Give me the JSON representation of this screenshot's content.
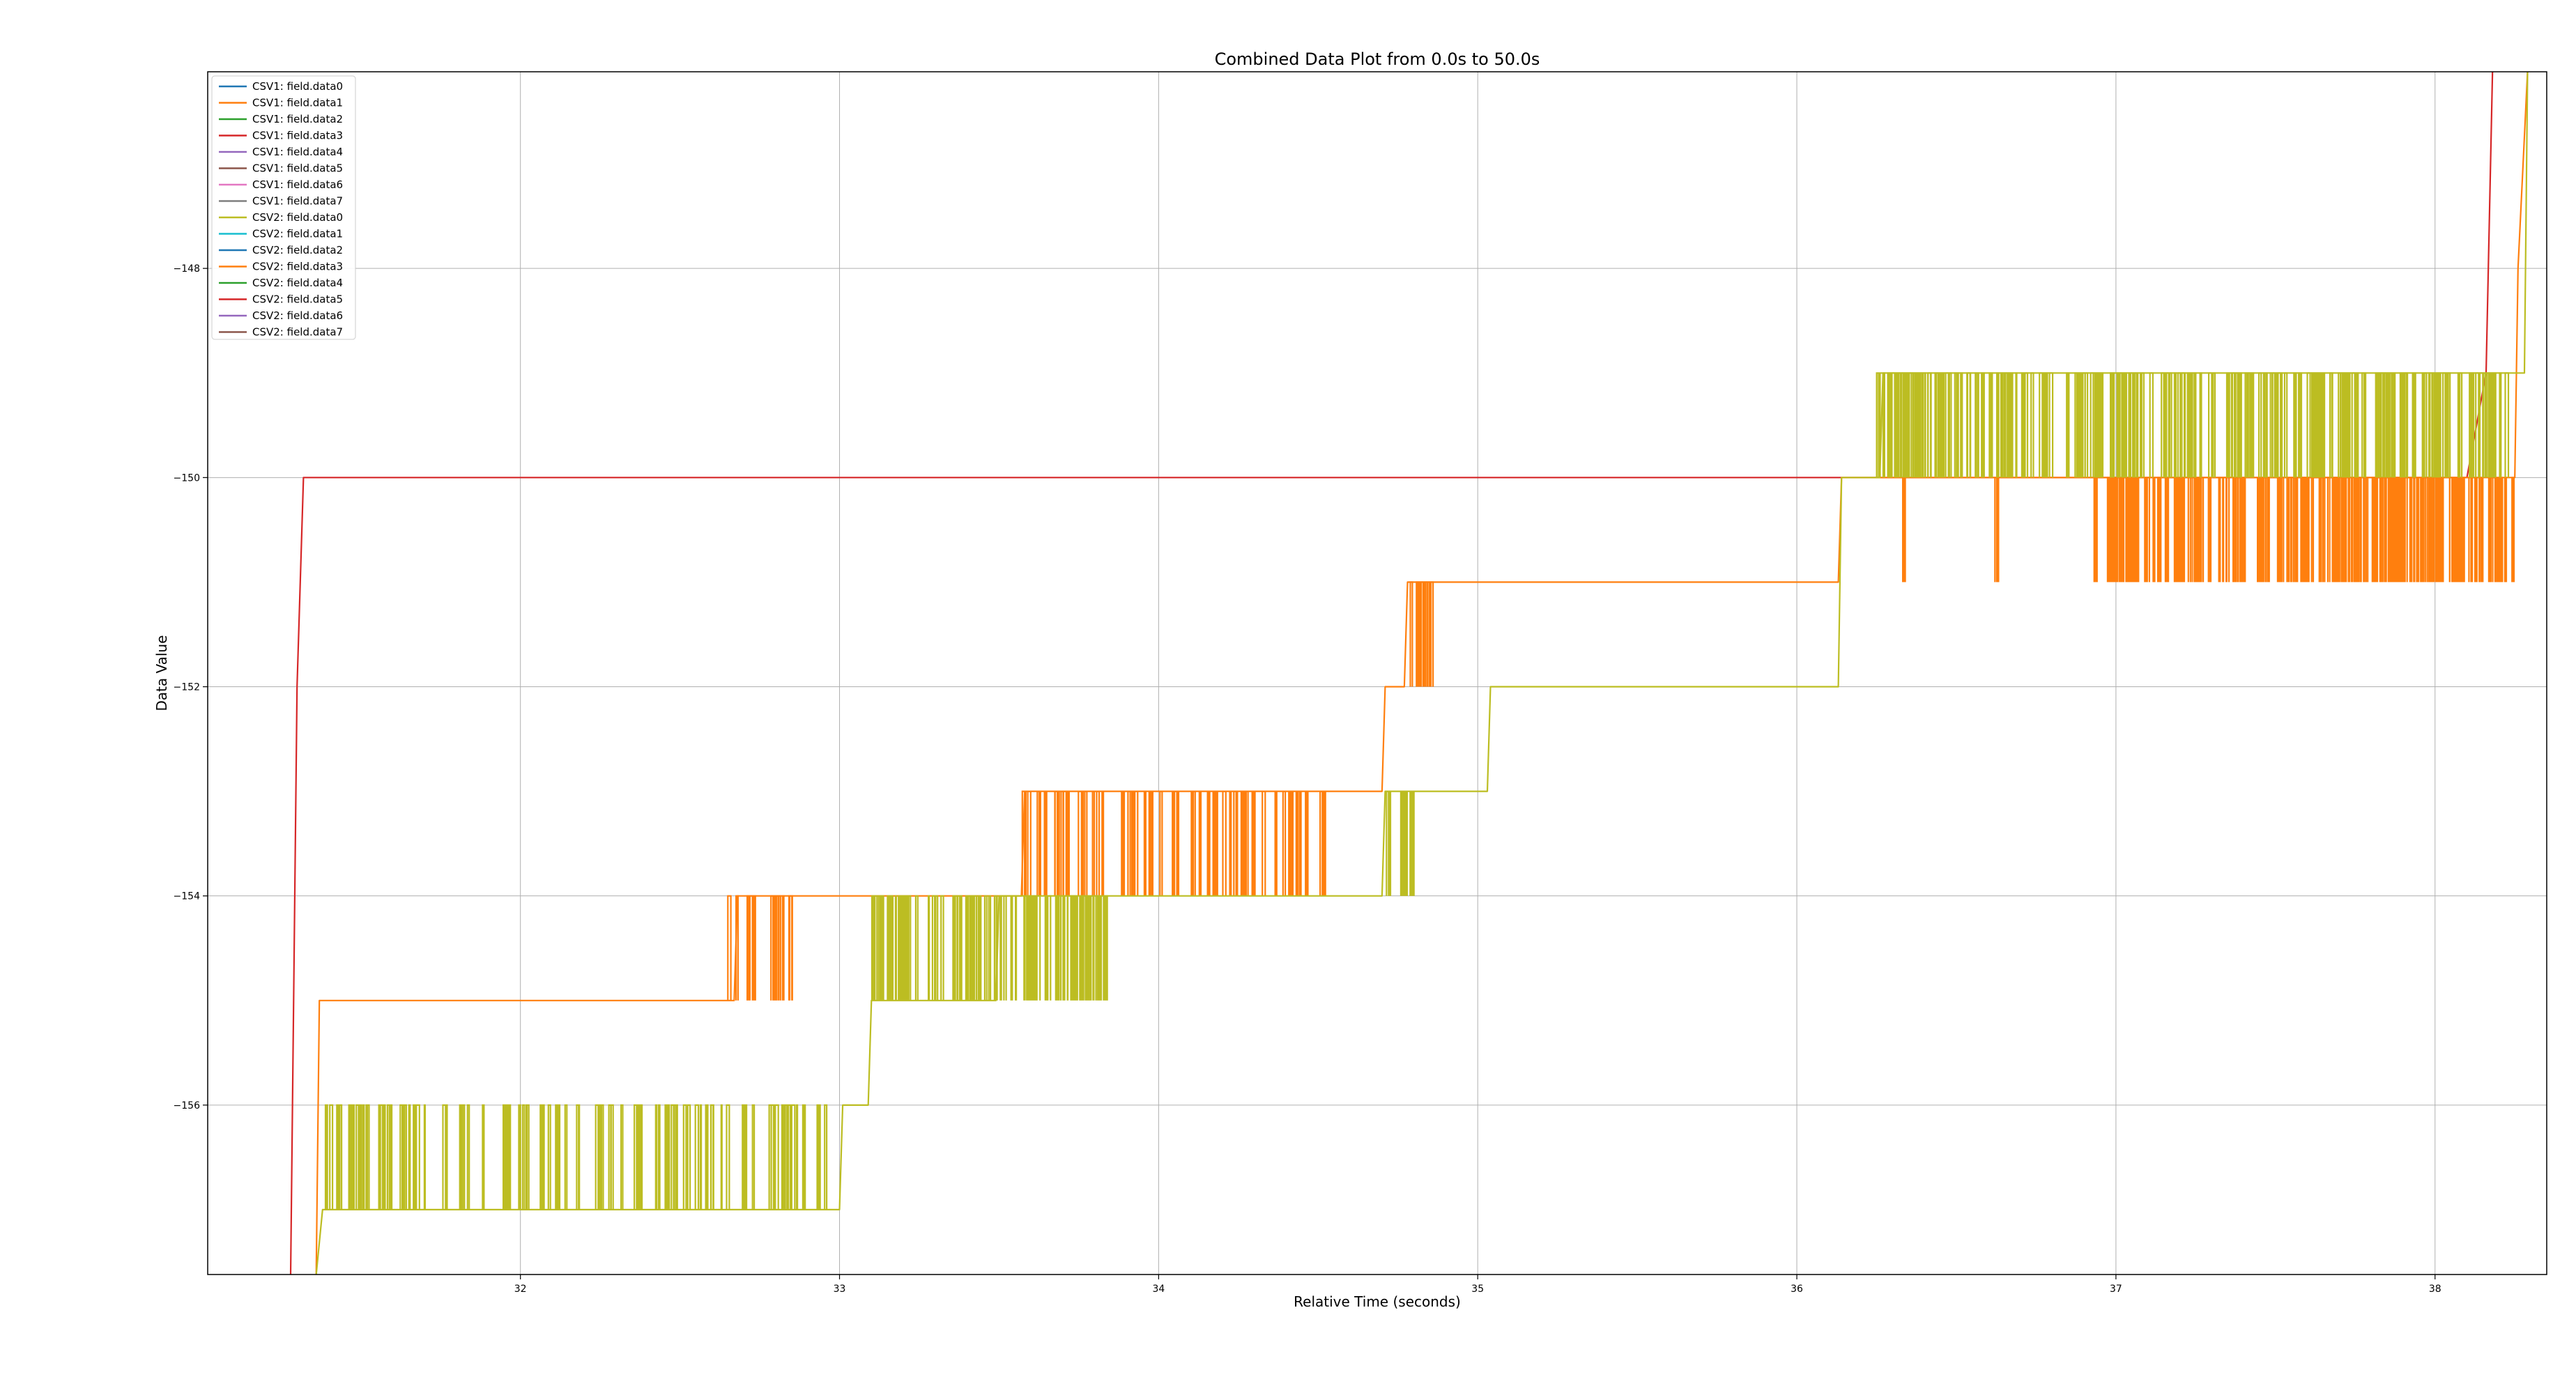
{
  "chart_data": {
    "type": "line",
    "title": "Combined Data Plot from 0.0s to 50.0s",
    "xlabel": "Relative Time (seconds)",
    "ylabel": "Data Value",
    "xlim": [
      31.02,
      38.35
    ],
    "ylim": [
      -157.62,
      -146.12
    ],
    "x_ticks": [
      {
        "value": 32,
        "label": "32"
      },
      {
        "value": 33,
        "label": "33"
      },
      {
        "value": 34,
        "label": "34"
      },
      {
        "value": 35,
        "label": "35"
      },
      {
        "value": 36,
        "label": "36"
      },
      {
        "value": 37,
        "label": "37"
      },
      {
        "value": 38,
        "label": "38"
      }
    ],
    "y_ticks": [
      {
        "value": -148,
        "label": "−148"
      },
      {
        "value": -150,
        "label": "−150"
      },
      {
        "value": -152,
        "label": "−152"
      },
      {
        "value": -154,
        "label": "−154"
      },
      {
        "value": -156,
        "label": "−156"
      }
    ],
    "grid": true,
    "legend_position": "top-left",
    "legend": [
      {
        "label": "CSV1: field.data0",
        "color": "#1f77b4"
      },
      {
        "label": "CSV1: field.data1",
        "color": "#ff7f0e"
      },
      {
        "label": "CSV1: field.data2",
        "color": "#2ca02c"
      },
      {
        "label": "CSV1: field.data3",
        "color": "#d62728"
      },
      {
        "label": "CSV1: field.data4",
        "color": "#9467bd"
      },
      {
        "label": "CSV1: field.data5",
        "color": "#8c564b"
      },
      {
        "label": "CSV1: field.data6",
        "color": "#e377c2"
      },
      {
        "label": "CSV1: field.data7",
        "color": "#7f7f7f"
      },
      {
        "label": "CSV2: field.data0",
        "color": "#bcbd22"
      },
      {
        "label": "CSV2: field.data1",
        "color": "#17becf"
      },
      {
        "label": "CSV2: field.data2",
        "color": "#1f77b4"
      },
      {
        "label": "CSV2: field.data3",
        "color": "#ff7f0e"
      },
      {
        "label": "CSV2: field.data4",
        "color": "#2ca02c"
      },
      {
        "label": "CSV2: field.data5",
        "color": "#d62728"
      },
      {
        "label": "CSV2: field.data6",
        "color": "#9467bd"
      },
      {
        "label": "CSV2: field.data7",
        "color": "#8c564b"
      }
    ],
    "series": [
      {
        "name": "CSV2: field.data5",
        "color": "#d62728",
        "points": [
          [
            31.28,
            -157.62
          ],
          [
            31.3,
            -152.0
          ],
          [
            31.32,
            -150.0
          ],
          [
            36.15,
            -150.0
          ],
          [
            38.1,
            -150.0
          ],
          [
            38.16,
            -149.0
          ],
          [
            38.18,
            -146.12
          ]
        ]
      },
      {
        "name": "CSV2: field.data3",
        "color": "#ff7f0e",
        "points": [
          [
            31.36,
            -157.62
          ],
          [
            31.37,
            -155.0
          ],
          [
            32.67,
            -155.0
          ],
          [
            32.68,
            -154.0
          ],
          [
            33.57,
            -154.0
          ],
          [
            33.58,
            -153.0
          ],
          [
            34.7,
            -153.0
          ],
          [
            34.71,
            -152.0
          ],
          [
            34.77,
            -152.0
          ],
          [
            34.78,
            -151.0
          ],
          [
            36.13,
            -151.0
          ],
          [
            36.14,
            -150.0
          ],
          [
            38.25,
            -150.0
          ],
          [
            38.26,
            -148.0
          ],
          [
            38.29,
            -146.12
          ]
        ],
        "noise": [
          {
            "x0": 32.65,
            "x1": 32.86,
            "low": -155.0,
            "high": -154.0,
            "count": 16
          },
          {
            "x0": 33.57,
            "x1": 34.52,
            "low": -154.0,
            "high": -153.0,
            "count": 70
          },
          {
            "x0": 34.75,
            "x1": 34.88,
            "low": -152.0,
            "high": -151.0,
            "count": 10
          },
          {
            "x0": 36.33,
            "x1": 36.34,
            "low": -151.0,
            "high": -150.0,
            "count": 2
          },
          {
            "x0": 36.62,
            "x1": 36.63,
            "low": -151.0,
            "high": -150.0,
            "count": 2
          },
          {
            "x0": 36.93,
            "x1": 38.25,
            "low": -151.0,
            "high": -150.0,
            "count": 200
          }
        ]
      },
      {
        "name": "CSV2: field.data0",
        "color": "#bcbd22",
        "points": [
          [
            31.36,
            -157.62
          ],
          [
            31.38,
            -157.0
          ],
          [
            33.0,
            -157.0
          ],
          [
            33.01,
            -156.0
          ],
          [
            33.09,
            -156.0
          ],
          [
            33.1,
            -155.0
          ],
          [
            33.49,
            -155.0
          ],
          [
            33.5,
            -154.0
          ],
          [
            34.7,
            -154.0
          ],
          [
            34.71,
            -153.0
          ],
          [
            35.03,
            -153.0
          ],
          [
            35.04,
            -152.0
          ],
          [
            36.13,
            -152.0
          ],
          [
            36.14,
            -150.0
          ],
          [
            36.26,
            -150.0
          ],
          [
            36.27,
            -149.0
          ],
          [
            38.28,
            -149.0
          ],
          [
            38.29,
            -146.12
          ]
        ],
        "noise": [
          {
            "x0": 31.38,
            "x1": 32.96,
            "low": -157.0,
            "high": -156.0,
            "count": 110
          },
          {
            "x0": 33.1,
            "x1": 33.85,
            "low": -155.0,
            "high": -154.0,
            "count": 85
          },
          {
            "x0": 34.7,
            "x1": 34.8,
            "low": -154.0,
            "high": -153.0,
            "count": 10
          },
          {
            "x0": 36.25,
            "x1": 38.22,
            "low": -150.0,
            "high": -149.0,
            "count": 230
          }
        ]
      }
    ]
  }
}
